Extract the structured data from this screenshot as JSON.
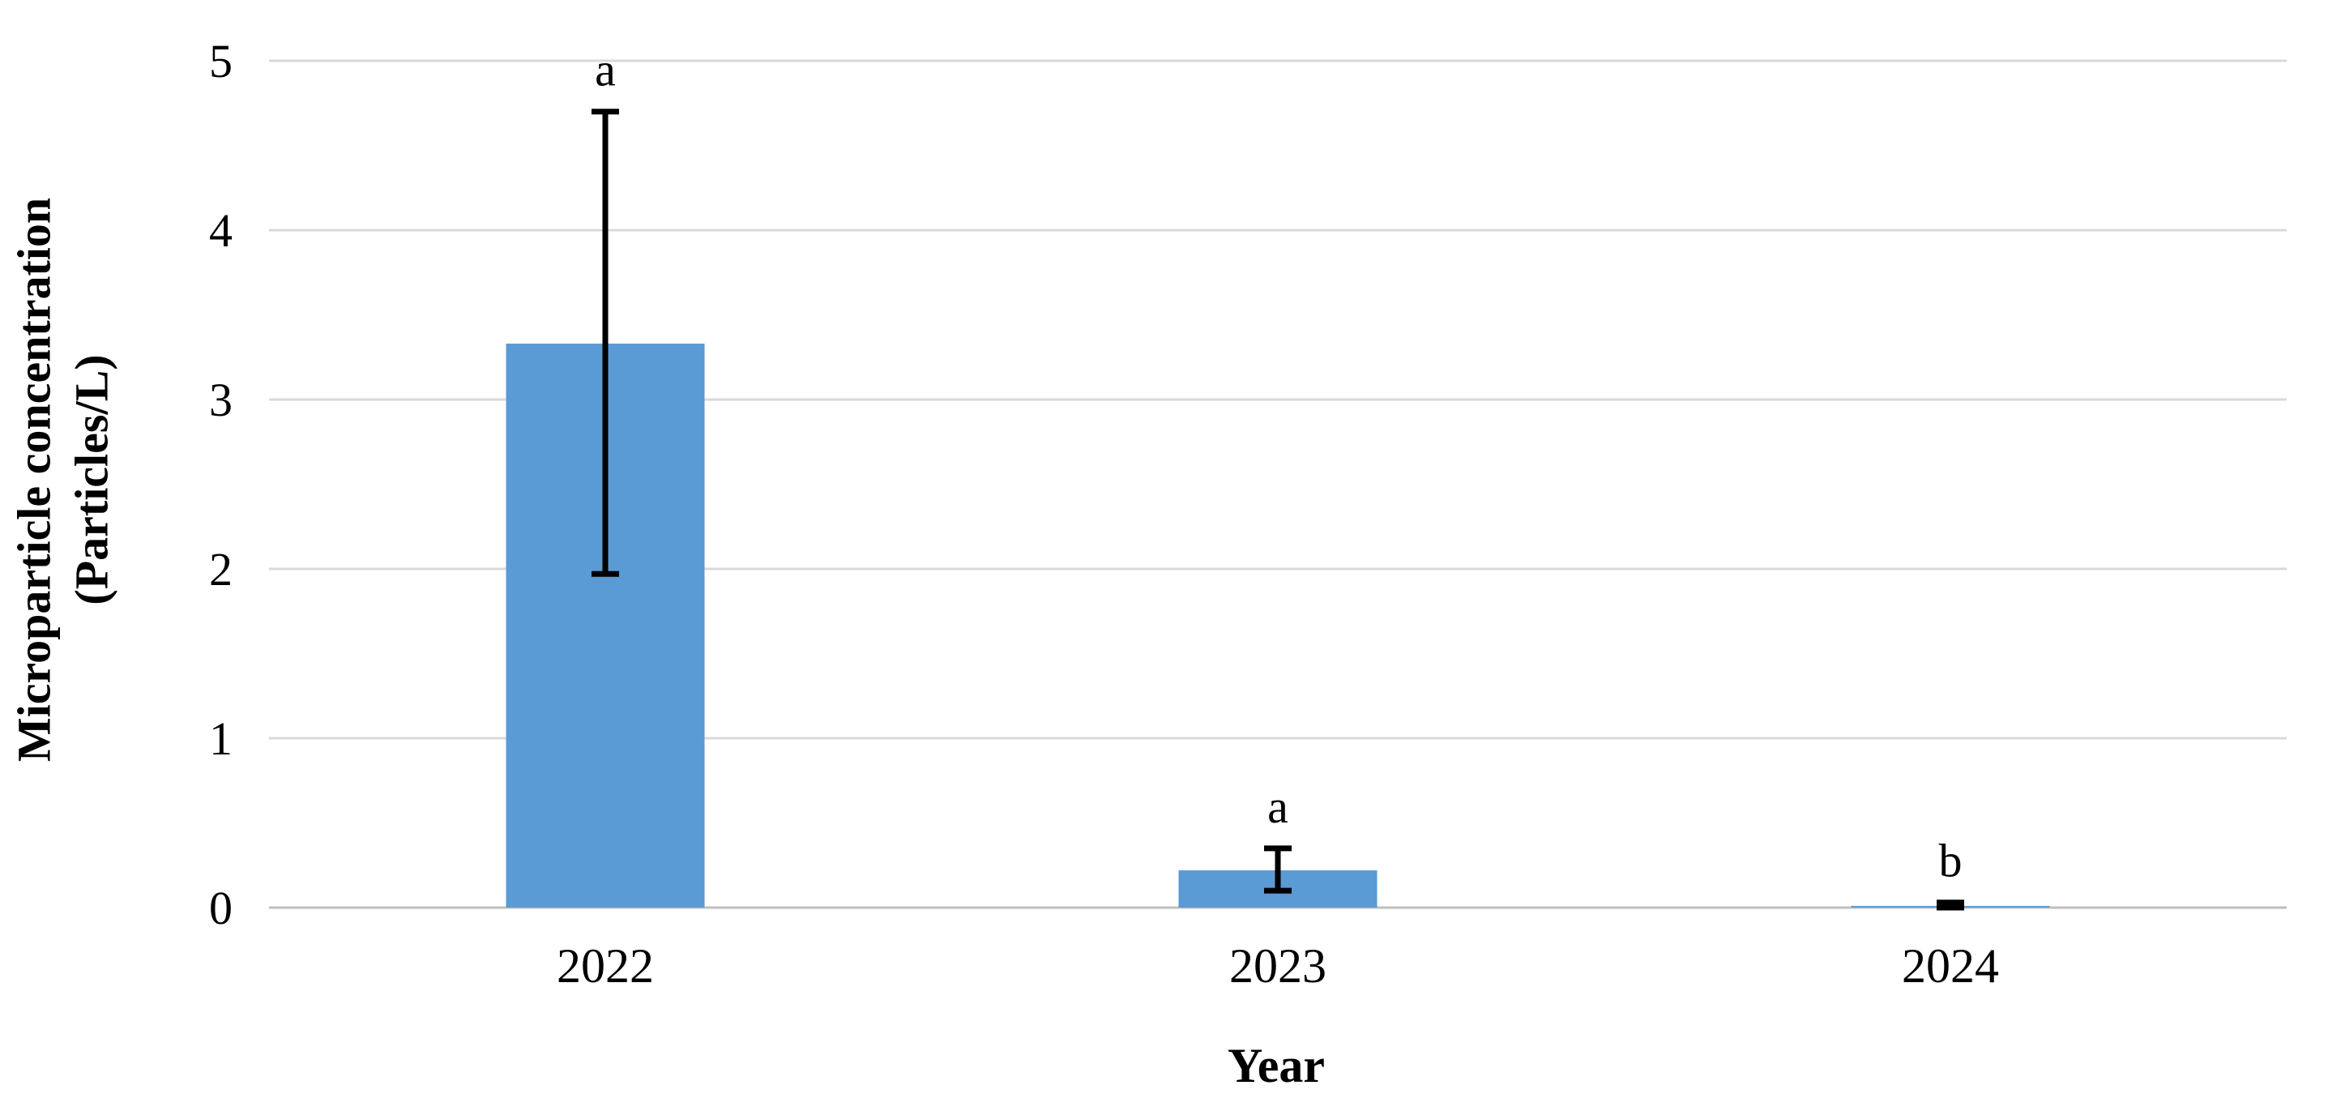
{
  "chart_data": {
    "type": "bar",
    "title": "",
    "xlabel": "Year",
    "ylabel": "Microparticle concentration (Particles/L)",
    "ylabel_lines": [
      "Microparticle concentration",
      "(Particles/L)"
    ],
    "categories": [
      "2022",
      "2023",
      "2024"
    ],
    "values": [
      3.33,
      0.22,
      0.01
    ],
    "error_low": [
      1.36,
      0.12,
      0.02
    ],
    "error_high": [
      1.37,
      0.13,
      0.02
    ],
    "sig_letters": [
      "a",
      "a",
      "b"
    ],
    "ylim": [
      0,
      5
    ],
    "yticks": [
      0,
      1,
      2,
      3,
      4,
      5
    ],
    "grid": true,
    "legend": "none",
    "bar_color": "#5B9BD5",
    "error_color": "#000000",
    "grid_color": "#D9D9D9",
    "axis_color": "#BFBFBF"
  }
}
